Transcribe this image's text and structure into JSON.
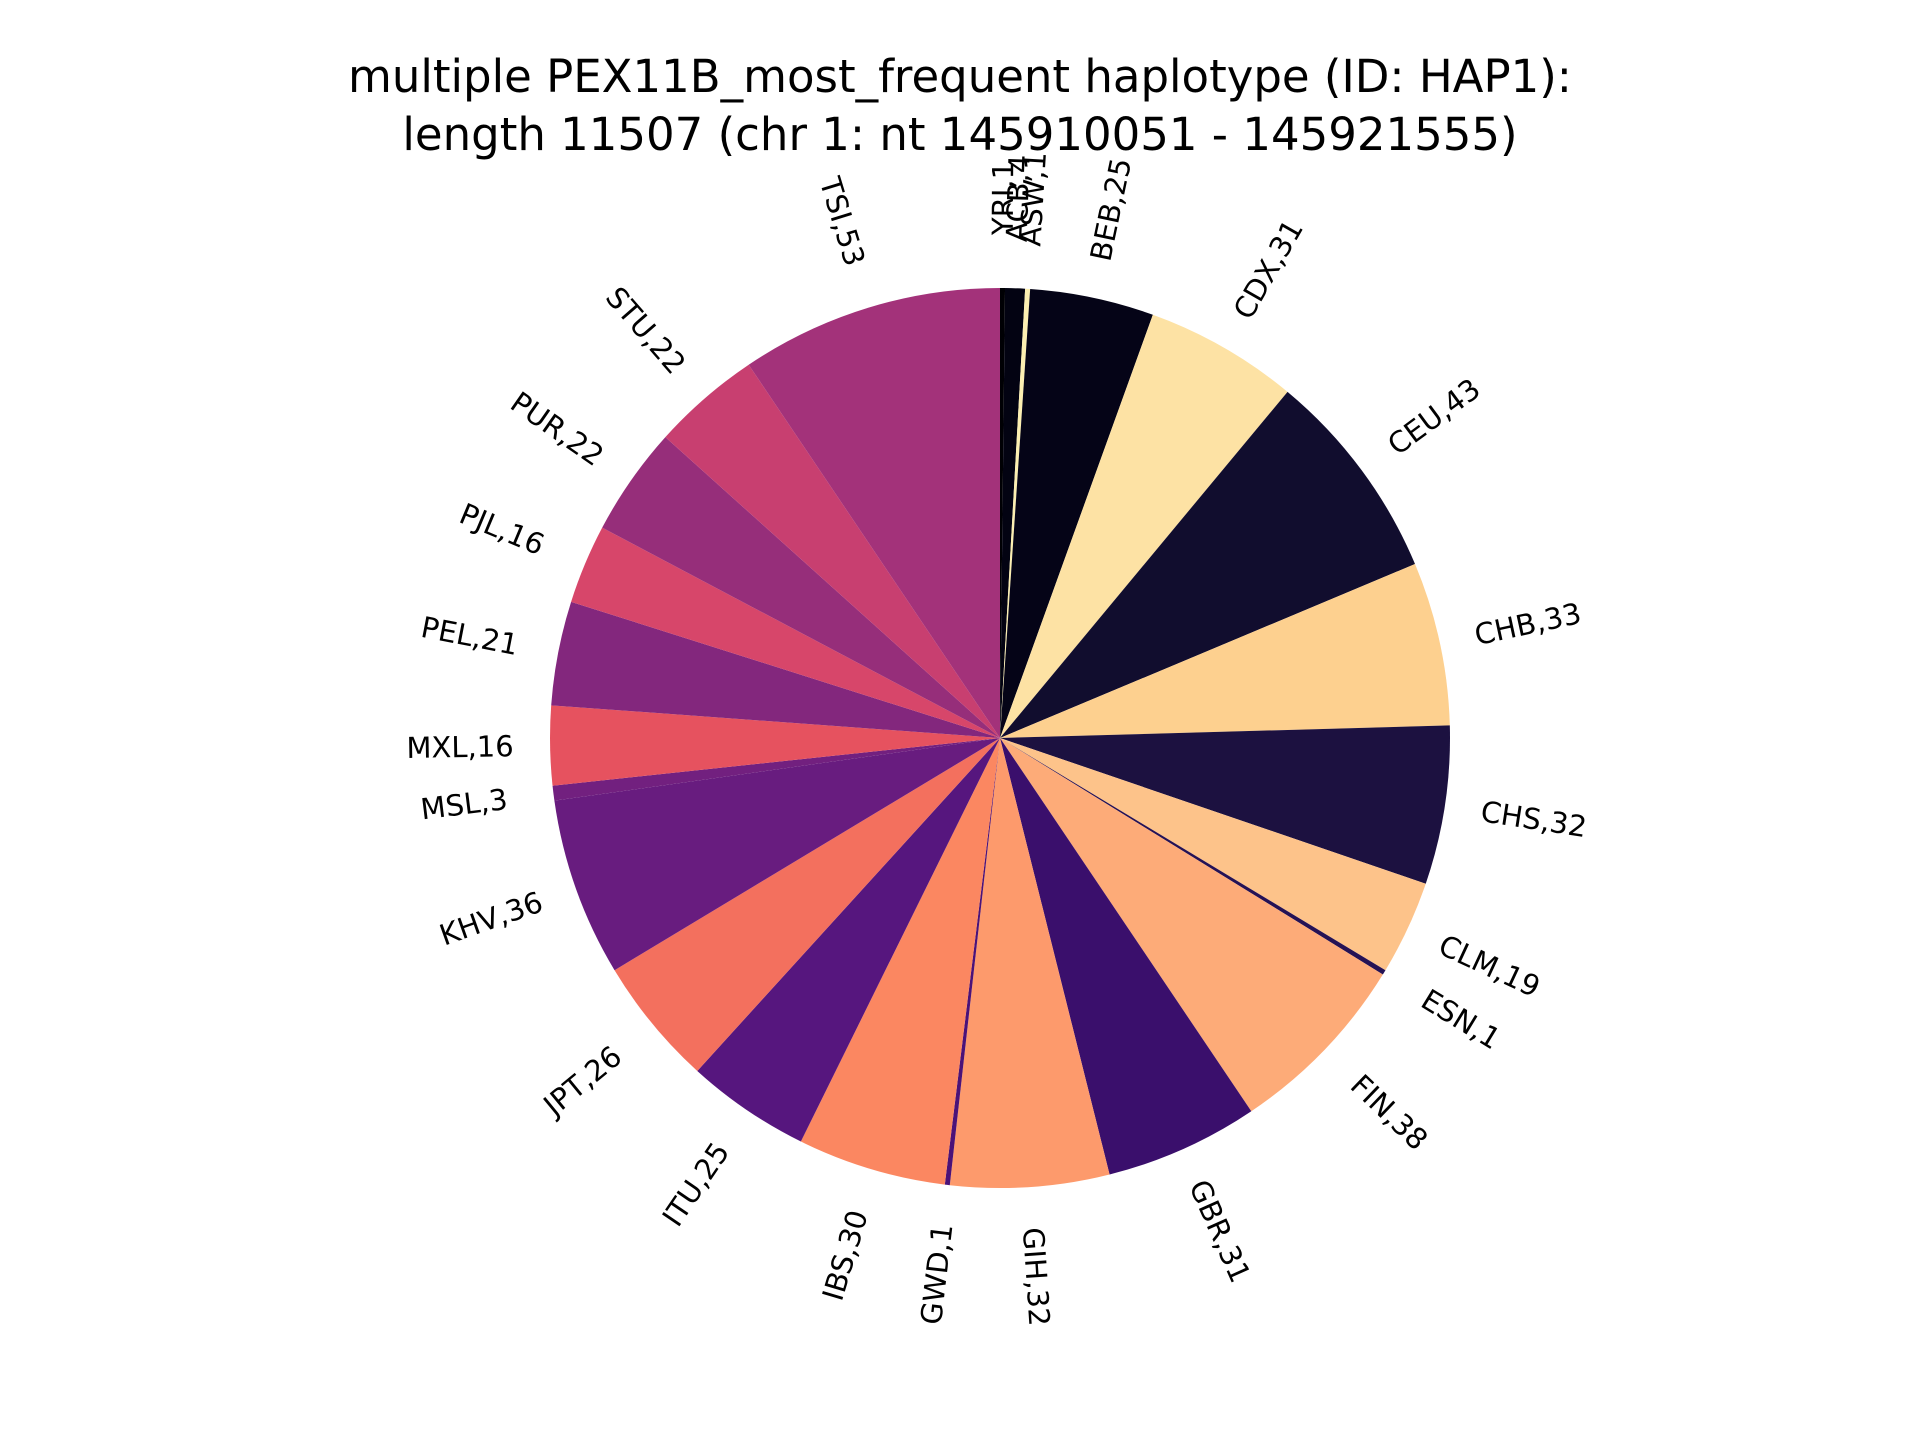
{
  "chart_data": {
    "type": "pie",
    "title_line1": "multiple PEX11B_most_frequent haplotype (ID: HAP1):",
    "title_line2": "length 11507 (chr 1: nt 145910051 - 145921555)",
    "start_angle_deg": 90,
    "direction": "clockwise",
    "slices": [
      {
        "label": "YRI,1",
        "value": 1,
        "color": "#000004"
      },
      {
        "label": "ACB,4",
        "value": 4,
        "color": "#030312"
      },
      {
        "label": "ASW,1",
        "value": 1,
        "color": "#FCEFB1"
      },
      {
        "label": "BEB,25",
        "value": 25,
        "color": "#050417"
      },
      {
        "label": "CDX,31",
        "value": 31,
        "color": "#FDE2A4"
      },
      {
        "label": "CEU,43",
        "value": 43,
        "color": "#110D2E"
      },
      {
        "label": "CHB,33",
        "value": 33,
        "color": "#FDD08F"
      },
      {
        "label": "CHS,32",
        "value": 32,
        "color": "#1C1140"
      },
      {
        "label": "CLM,19",
        "value": 19,
        "color": "#FDC38A"
      },
      {
        "label": "ESN,1",
        "value": 1,
        "color": "#251255"
      },
      {
        "label": "FIN,38",
        "value": 38,
        "color": "#FDAB78"
      },
      {
        "label": "GBR,31",
        "value": 31,
        "color": "#3A0F6C"
      },
      {
        "label": "GIH,32",
        "value": 32,
        "color": "#FD9A6C"
      },
      {
        "label": "GWD,1",
        "value": 1,
        "color": "#4B1278"
      },
      {
        "label": "IBS,30",
        "value": 30,
        "color": "#FB8761"
      },
      {
        "label": "ITU,25",
        "value": 25,
        "color": "#56167E"
      },
      {
        "label": "JPT,26",
        "value": 26,
        "color": "#F3705E"
      },
      {
        "label": "KHV,36",
        "value": 36,
        "color": "#681C7F"
      },
      {
        "label": "MSL,3",
        "value": 3,
        "color": "#72207F"
      },
      {
        "label": "MXL,16",
        "value": 16,
        "color": "#E6525F"
      },
      {
        "label": "PEL,21",
        "value": 21,
        "color": "#83277D"
      },
      {
        "label": "PJL,16",
        "value": 16,
        "color": "#D7466A"
      },
      {
        "label": "PUR,22",
        "value": 22,
        "color": "#962E7A"
      },
      {
        "label": "STU,22",
        "value": 22,
        "color": "#C83F70"
      },
      {
        "label": "TSI,53",
        "value": 53,
        "color": "#A3327A"
      }
    ]
  }
}
